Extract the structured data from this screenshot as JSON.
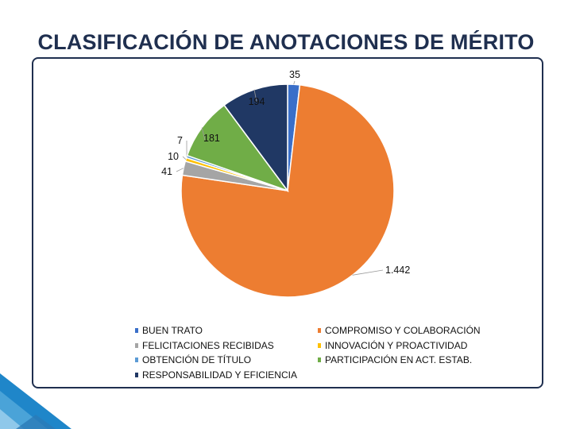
{
  "title": "CLASIFICACIÓN DE ANOTACIONES DE MÉRITO",
  "chart_data": {
    "type": "pie",
    "title": "CLASIFICACIÓN DE ANOTACIONES DE MÉRITO",
    "start_angle_deg": 0,
    "direction": "clockwise",
    "slices": [
      {
        "name": "BUEN TRATO",
        "value": 35,
        "label": "35",
        "color": "#3a6fc9"
      },
      {
        "name": "COMPROMISO Y COLABORACIÓN",
        "value": 1442,
        "label": "1.442",
        "color": "#ed7d31"
      },
      {
        "name": "FELICITACIONES RECIBIDAS",
        "value": 41,
        "label": "41",
        "color": "#a5a5a5"
      },
      {
        "name": "INNOVACIÓN Y PROACTIVIDAD",
        "value": 10,
        "label": "10",
        "color": "#ffc000"
      },
      {
        "name": "OBTENCIÓN DE TÍTULO",
        "value": 7,
        "label": "7",
        "color": "#5b9bd5"
      },
      {
        "name": "PARTICIPACIÓN EN ACT. ESTAB.",
        "value": 181,
        "label": "181",
        "color": "#70ad47"
      },
      {
        "name": "RESPONSABILIDAD Y EFICIENCIA",
        "value": 194,
        "label": "194",
        "color": "#203864"
      }
    ],
    "legend_position": "bottom"
  },
  "legend": {
    "left": [
      {
        "label": "BUEN TRATO",
        "color": "#3a6fc9"
      },
      {
        "label": "FELICITACIONES RECIBIDAS",
        "color": "#a5a5a5"
      },
      {
        "label": "OBTENCIÓN DE TÍTULO",
        "color": "#5b9bd5"
      },
      {
        "label": "RESPONSABILIDAD Y EFICIENCIA",
        "color": "#203864"
      }
    ],
    "right": [
      {
        "label": "COMPROMISO Y COLABORACIÓN",
        "color": "#ed7d31"
      },
      {
        "label": "INNOVACIÓN Y PROACTIVIDAD",
        "color": "#ffc000"
      },
      {
        "label": "PARTICIPACIÓN EN ACT. ESTAB.",
        "color": "#70ad47"
      }
    ]
  }
}
